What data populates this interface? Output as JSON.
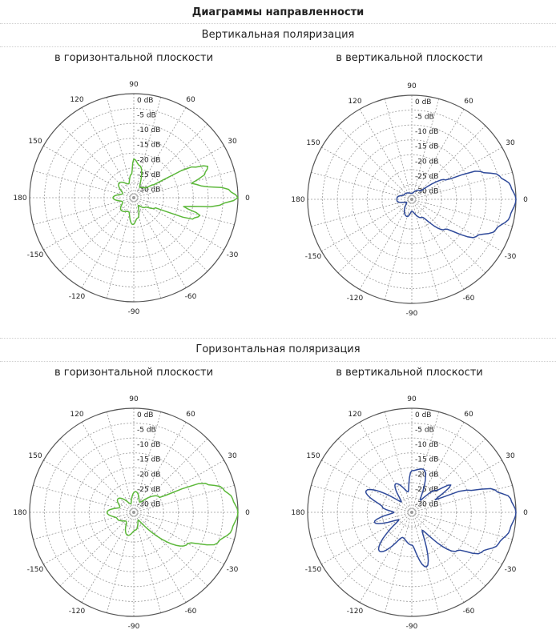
{
  "page": {
    "title": "Диаграммы направленности",
    "sections": [
      {
        "title": "Вертикальная поляризация",
        "subtitles": [
          "в горизонтальной плоскости",
          "в вертикальной плоскости"
        ]
      },
      {
        "title": "Горизонтальная поляризация",
        "subtitles": [
          "в горизонтальной плоскости",
          "в вертикальной плоскости"
        ]
      }
    ]
  },
  "colors": {
    "green": "#5cb83a",
    "blue": "#2f4a9a",
    "grid": "#9a9a9a",
    "outer": "#555555"
  },
  "chart_data": [
    {
      "type": "polar",
      "section": "Вертикальная поляризация",
      "subtitle": "в горизонтальной плоскости",
      "color": "green",
      "angle_ticks": [
        "0",
        "30",
        "60",
        "90",
        "120",
        "150",
        "180",
        "-150",
        "-120",
        "-90",
        "-60",
        "-30"
      ],
      "radial_ticks": [
        "0 dB",
        "-5 dB",
        "-10 dB",
        "-15 dB",
        "-20 dB",
        "-25 dB",
        "-30 dB"
      ],
      "rlim_db": [
        -35,
        0
      ],
      "points": [
        [
          0,
          0
        ],
        [
          5,
          -3
        ],
        [
          10,
          -12
        ],
        [
          14,
          -15
        ],
        [
          18,
          -10
        ],
        [
          23,
          -8
        ],
        [
          28,
          -13
        ],
        [
          33,
          -27
        ],
        [
          40,
          -30
        ],
        [
          60,
          -31
        ],
        [
          80,
          -24
        ],
        [
          90,
          -22
        ],
        [
          95,
          -27
        ],
        [
          110,
          -30
        ],
        [
          135,
          -28
        ],
        [
          160,
          -31
        ],
        [
          180,
          -28
        ],
        [
          200,
          -31
        ],
        [
          225,
          -29
        ],
        [
          250,
          -30
        ],
        [
          268,
          -26
        ],
        [
          280,
          -28
        ],
        [
          300,
          -32
        ],
        [
          320,
          -30
        ],
        [
          335,
          -27
        ],
        [
          340,
          -14
        ],
        [
          345,
          -12
        ],
        [
          350,
          -18
        ],
        [
          355,
          -6
        ],
        [
          360,
          0
        ]
      ]
    },
    {
      "type": "polar",
      "section": "Вертикальная поляризация",
      "subtitle": "в вертикальной плоскости",
      "color": "blue",
      "angle_ticks": [
        "0",
        "30",
        "60",
        "90",
        "120",
        "150",
        "180",
        "-150",
        "-120",
        "-90",
        "-60",
        "-30"
      ],
      "radial_ticks": [
        "0 dB",
        "-5 dB",
        "-10 dB",
        "-15 dB",
        "-20 dB",
        "-25 dB",
        "-30 dB"
      ],
      "rlim_db": [
        -35,
        0
      ],
      "points": [
        [
          0,
          0
        ],
        [
          8,
          -1.5
        ],
        [
          15,
          -4.5
        ],
        [
          22,
          -10
        ],
        [
          30,
          -22
        ],
        [
          45,
          -31
        ],
        [
          90,
          -33
        ],
        [
          150,
          -32
        ],
        [
          175,
          -30
        ],
        [
          180,
          -30
        ],
        [
          185,
          -30
        ],
        [
          210,
          -33
        ],
        [
          255,
          -29
        ],
        [
          270,
          -31
        ],
        [
          300,
          -28
        ],
        [
          318,
          -20
        ],
        [
          330,
          -10
        ],
        [
          340,
          -5
        ],
        [
          350,
          -1.5
        ],
        [
          360,
          0
        ]
      ]
    },
    {
      "type": "polar",
      "section": "Горизонтальная поляризация",
      "subtitle": "в горизонтальной плоскости",
      "color": "green",
      "angle_ticks": [
        "0",
        "30",
        "60",
        "90",
        "120",
        "150",
        "180",
        "-150",
        "-120",
        "-90",
        "-60",
        "-30"
      ],
      "radial_ticks": [
        "0 dB",
        "-5 dB",
        "-10 dB",
        "-15 dB",
        "-20 dB",
        "-25 dB",
        "-30 dB"
      ],
      "rlim_db": [
        -35,
        0
      ],
      "points": [
        [
          0,
          0
        ],
        [
          8,
          -1.5
        ],
        [
          15,
          -4
        ],
        [
          22,
          -9
        ],
        [
          30,
          -25
        ],
        [
          60,
          -31
        ],
        [
          85,
          -28
        ],
        [
          110,
          -32
        ],
        [
          140,
          -28
        ],
        [
          160,
          -30
        ],
        [
          180,
          -26
        ],
        [
          200,
          -29
        ],
        [
          230,
          -31
        ],
        [
          255,
          -27
        ],
        [
          275,
          -29
        ],
        [
          300,
          -32
        ],
        [
          330,
          -14
        ],
        [
          340,
          -5
        ],
        [
          350,
          -1.5
        ],
        [
          360,
          0
        ]
      ]
    },
    {
      "type": "polar",
      "section": "Горизонтальная поляризация",
      "subtitle": "в вертикальной плоскости",
      "color": "blue",
      "angle_ticks": [
        "0",
        "30",
        "60",
        "90",
        "120",
        "150",
        "180",
        "-150",
        "-120",
        "-90",
        "-60",
        "-30"
      ],
      "radial_ticks": [
        "0 dB",
        "-5 dB",
        "-10 dB",
        "-15 dB",
        "-20 dB",
        "-25 dB",
        "-30 dB"
      ],
      "rlim_db": [
        -35,
        0
      ],
      "points": [
        [
          0,
          0
        ],
        [
          8,
          -1.5
        ],
        [
          15,
          -6
        ],
        [
          22,
          -15
        ],
        [
          28,
          -26
        ],
        [
          35,
          -19
        ],
        [
          42,
          -24
        ],
        [
          55,
          -30
        ],
        [
          75,
          -20
        ],
        [
          90,
          -21
        ],
        [
          100,
          -28
        ],
        [
          120,
          -24
        ],
        [
          135,
          -30
        ],
        [
          155,
          -18
        ],
        [
          170,
          -25
        ],
        [
          180,
          -29
        ],
        [
          195,
          -22
        ],
        [
          210,
          -30
        ],
        [
          230,
          -18
        ],
        [
          250,
          -26
        ],
        [
          270,
          -24
        ],
        [
          285,
          -16
        ],
        [
          300,
          -28
        ],
        [
          320,
          -15
        ],
        [
          330,
          -8
        ],
        [
          340,
          -4
        ],
        [
          350,
          -1.5
        ],
        [
          360,
          0
        ]
      ]
    }
  ]
}
